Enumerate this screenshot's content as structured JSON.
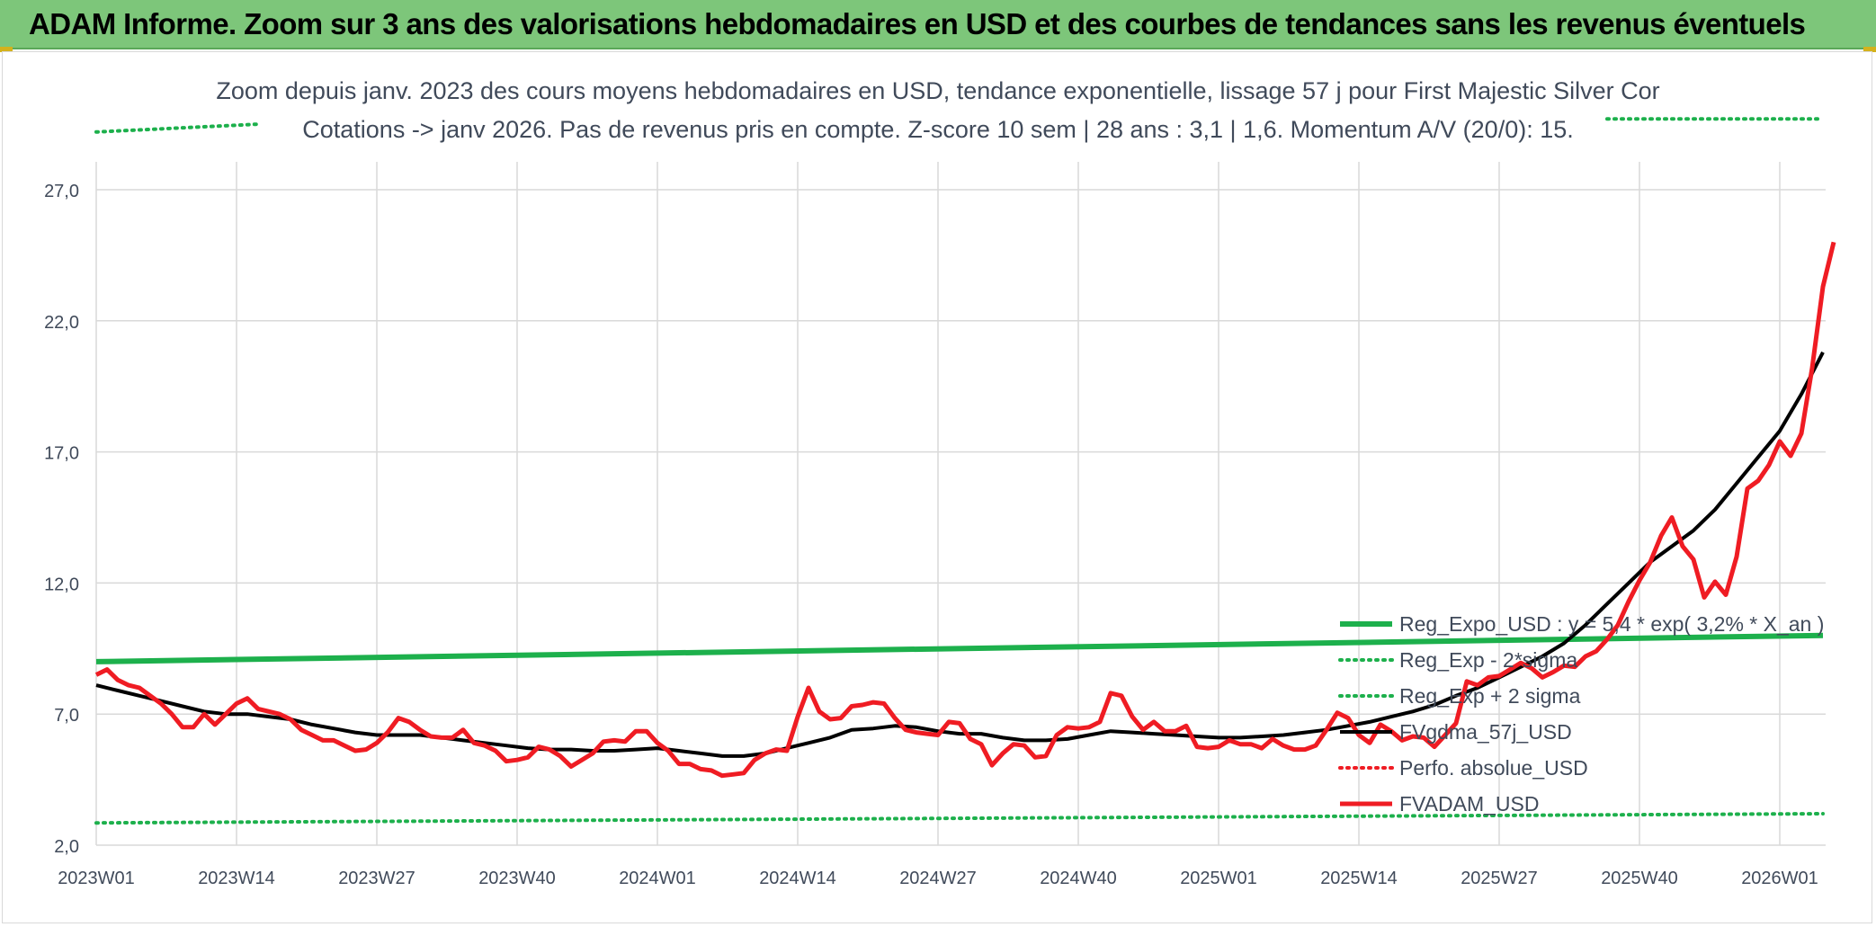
{
  "banner": {
    "title": "ADAM Informe. Zoom sur 3 ans des valorisations hebdomadaires en USD et des courbes de tendances sans les revenus éventuels"
  },
  "colors": {
    "banner_bg": "#7dc67a",
    "green": "#1db04c",
    "red": "#ef1c23",
    "black": "#000000",
    "grid": "#d9d9d9",
    "axis_text": "#404a5a"
  },
  "chart_data": {
    "type": "line",
    "title_lines": [
      "Zoom depuis janv. 2023 des cours moyens hebdomadaires en USD, tendance exponentielle, lissage 57 j pour First Majestic Silver Cor",
      "Cotations -> janv 2026. Pas de revenus pris en compte. Z-score 10 sem | 28 ans : 3,1 | 1,6. Momentum A/V (20/0): 15."
    ],
    "x_start_index": 0,
    "x_ticks": [
      {
        "i": 0,
        "label": "2023W01"
      },
      {
        "i": 13,
        "label": "2023W14"
      },
      {
        "i": 26,
        "label": "2023W27"
      },
      {
        "i": 39,
        "label": "2023W40"
      },
      {
        "i": 52,
        "label": "2024W01"
      },
      {
        "i": 65,
        "label": "2024W14"
      },
      {
        "i": 78,
        "label": "2024W27"
      },
      {
        "i": 91,
        "label": "2024W40"
      },
      {
        "i": 104,
        "label": "2025W01"
      },
      {
        "i": 117,
        "label": "2025W14"
      },
      {
        "i": 130,
        "label": "2025W27"
      },
      {
        "i": 143,
        "label": "2025W40"
      },
      {
        "i": 156,
        "label": "2026W01"
      }
    ],
    "x_range": [
      0,
      160
    ],
    "y_ticks": [
      2,
      7,
      12,
      17,
      22,
      27
    ],
    "y_tick_labels": [
      "2,0",
      "7,0",
      "12,0",
      "17,0",
      "22,0",
      "27,0"
    ],
    "y_range": [
      2,
      29.5
    ],
    "grid": true,
    "legend_position": "bottom-right",
    "series": [
      {
        "name": "Reg_Expo_USD : y = 5,4 * exp( 3,2% * X_an )",
        "style": "solid-thick",
        "color": "#1db04c",
        "points": [
          [
            0,
            9.0
          ],
          [
            160,
            10.0
          ]
        ]
      },
      {
        "name": "Reg_Exp - 2*sigma",
        "style": "dotted",
        "color": "#1db04c",
        "points": [
          [
            0,
            2.85
          ],
          [
            160,
            3.2
          ]
        ]
      },
      {
        "name": "Reg_Exp + 2 sigma",
        "style": "dotted",
        "color": "#1db04c",
        "points": [
          [
            0,
            29.2
          ],
          [
            15,
            29.5
          ]
        ],
        "points2": [
          [
            140,
            29.7
          ],
          [
            160,
            29.7
          ]
        ]
      },
      {
        "name": "FVgdma_57j_USD",
        "style": "solid",
        "color": "#000000",
        "points": [
          [
            0,
            8.1
          ],
          [
            2,
            7.9
          ],
          [
            4,
            7.7
          ],
          [
            6,
            7.5
          ],
          [
            8,
            7.3
          ],
          [
            10,
            7.1
          ],
          [
            12,
            7.0
          ],
          [
            14,
            7.0
          ],
          [
            16,
            6.9
          ],
          [
            18,
            6.8
          ],
          [
            20,
            6.6
          ],
          [
            22,
            6.45
          ],
          [
            24,
            6.3
          ],
          [
            26,
            6.2
          ],
          [
            28,
            6.2
          ],
          [
            30,
            6.2
          ],
          [
            32,
            6.1
          ],
          [
            34,
            6.0
          ],
          [
            36,
            5.9
          ],
          [
            38,
            5.8
          ],
          [
            40,
            5.7
          ],
          [
            42,
            5.65
          ],
          [
            44,
            5.65
          ],
          [
            46,
            5.6
          ],
          [
            48,
            5.6
          ],
          [
            50,
            5.65
          ],
          [
            52,
            5.7
          ],
          [
            54,
            5.6
          ],
          [
            56,
            5.5
          ],
          [
            58,
            5.4
          ],
          [
            60,
            5.4
          ],
          [
            62,
            5.5
          ],
          [
            64,
            5.7
          ],
          [
            66,
            5.9
          ],
          [
            68,
            6.1
          ],
          [
            70,
            6.4
          ],
          [
            72,
            6.45
          ],
          [
            74,
            6.55
          ],
          [
            76,
            6.5
          ],
          [
            78,
            6.35
          ],
          [
            80,
            6.25
          ],
          [
            82,
            6.25
          ],
          [
            84,
            6.1
          ],
          [
            86,
            6.0
          ],
          [
            88,
            6.0
          ],
          [
            90,
            6.05
          ],
          [
            92,
            6.2
          ],
          [
            94,
            6.35
          ],
          [
            96,
            6.3
          ],
          [
            98,
            6.25
          ],
          [
            100,
            6.2
          ],
          [
            102,
            6.15
          ],
          [
            104,
            6.1
          ],
          [
            106,
            6.1
          ],
          [
            108,
            6.15
          ],
          [
            110,
            6.2
          ],
          [
            112,
            6.3
          ],
          [
            114,
            6.4
          ],
          [
            116,
            6.55
          ],
          [
            118,
            6.7
          ],
          [
            120,
            6.9
          ],
          [
            122,
            7.1
          ],
          [
            124,
            7.35
          ],
          [
            126,
            7.7
          ],
          [
            128,
            8.0
          ],
          [
            130,
            8.4
          ],
          [
            132,
            8.8
          ],
          [
            134,
            9.2
          ],
          [
            136,
            9.7
          ],
          [
            138,
            10.4
          ],
          [
            140,
            11.2
          ],
          [
            142,
            12.0
          ],
          [
            144,
            12.8
          ],
          [
            146,
            13.4
          ],
          [
            148,
            14.0
          ],
          [
            150,
            14.8
          ],
          [
            152,
            15.8
          ],
          [
            154,
            16.8
          ],
          [
            156,
            17.8
          ],
          [
            158,
            19.2
          ],
          [
            160,
            20.8
          ]
        ]
      },
      {
        "name": "Perfo. absolue_USD",
        "style": "dotted",
        "color": "#ef1c23",
        "points": []
      },
      {
        "name": "FVADAM_USD",
        "style": "solid-thick",
        "color": "#ef1c23",
        "points": [
          [
            0,
            8.5
          ],
          [
            1,
            8.7
          ],
          [
            2,
            8.3
          ],
          [
            3,
            8.1
          ],
          [
            4,
            8.0
          ],
          [
            5,
            7.7
          ],
          [
            6,
            7.4
          ],
          [
            7,
            7.0
          ],
          [
            8,
            6.5
          ],
          [
            9,
            6.5
          ],
          [
            10,
            7.0
          ],
          [
            11,
            6.6
          ],
          [
            12,
            7.0
          ],
          [
            13,
            7.4
          ],
          [
            14,
            7.6
          ],
          [
            15,
            7.2
          ],
          [
            16,
            7.1
          ],
          [
            17,
            7.0
          ],
          [
            18,
            6.8
          ],
          [
            19,
            6.4
          ],
          [
            20,
            6.2
          ],
          [
            21,
            6.0
          ],
          [
            22,
            6.0
          ],
          [
            23,
            5.8
          ],
          [
            24,
            5.6
          ],
          [
            25,
            5.65
          ],
          [
            26,
            5.9
          ],
          [
            27,
            6.3
          ],
          [
            28,
            6.85
          ],
          [
            29,
            6.7
          ],
          [
            30,
            6.4
          ],
          [
            31,
            6.15
          ],
          [
            32,
            6.1
          ],
          [
            33,
            6.1
          ],
          [
            34,
            6.4
          ],
          [
            35,
            5.9
          ],
          [
            36,
            5.8
          ],
          [
            37,
            5.6
          ],
          [
            38,
            5.2
          ],
          [
            39,
            5.25
          ],
          [
            40,
            5.35
          ],
          [
            41,
            5.75
          ],
          [
            42,
            5.65
          ],
          [
            43,
            5.4
          ],
          [
            44,
            5.0
          ],
          [
            45,
            5.25
          ],
          [
            46,
            5.5
          ],
          [
            47,
            5.95
          ],
          [
            48,
            6.0
          ],
          [
            49,
            5.95
          ],
          [
            50,
            6.35
          ],
          [
            51,
            6.35
          ],
          [
            52,
            5.9
          ],
          [
            53,
            5.6
          ],
          [
            54,
            5.1
          ],
          [
            55,
            5.1
          ],
          [
            56,
            4.9
          ],
          [
            57,
            4.85
          ],
          [
            58,
            4.65
          ],
          [
            59,
            4.7
          ],
          [
            60,
            4.75
          ],
          [
            61,
            5.25
          ],
          [
            62,
            5.5
          ],
          [
            63,
            5.65
          ],
          [
            64,
            5.6
          ],
          [
            65,
            6.9
          ],
          [
            66,
            8.0
          ],
          [
            67,
            7.1
          ],
          [
            68,
            6.8
          ],
          [
            69,
            6.85
          ],
          [
            70,
            7.3
          ],
          [
            71,
            7.35
          ],
          [
            72,
            7.45
          ],
          [
            73,
            7.4
          ],
          [
            74,
            6.85
          ],
          [
            75,
            6.4
          ],
          [
            76,
            6.3
          ],
          [
            77,
            6.25
          ],
          [
            78,
            6.2
          ],
          [
            79,
            6.7
          ],
          [
            80,
            6.65
          ],
          [
            81,
            6.05
          ],
          [
            82,
            5.85
          ],
          [
            83,
            5.05
          ],
          [
            84,
            5.5
          ],
          [
            85,
            5.85
          ],
          [
            86,
            5.8
          ],
          [
            87,
            5.35
          ],
          [
            88,
            5.4
          ],
          [
            89,
            6.2
          ],
          [
            90,
            6.5
          ],
          [
            91,
            6.45
          ],
          [
            92,
            6.5
          ],
          [
            93,
            6.7
          ],
          [
            94,
            7.8
          ],
          [
            95,
            7.7
          ],
          [
            96,
            6.9
          ],
          [
            97,
            6.4
          ],
          [
            98,
            6.7
          ],
          [
            99,
            6.35
          ],
          [
            100,
            6.35
          ],
          [
            101,
            6.55
          ],
          [
            102,
            5.75
          ],
          [
            103,
            5.7
          ],
          [
            104,
            5.75
          ],
          [
            105,
            6.0
          ],
          [
            106,
            5.85
          ],
          [
            107,
            5.85
          ],
          [
            108,
            5.7
          ],
          [
            109,
            6.05
          ],
          [
            110,
            5.8
          ],
          [
            111,
            5.65
          ],
          [
            112,
            5.65
          ],
          [
            113,
            5.8
          ],
          [
            114,
            6.4
          ],
          [
            115,
            7.05
          ],
          [
            116,
            6.85
          ],
          [
            117,
            6.2
          ],
          [
            118,
            5.9
          ],
          [
            119,
            6.6
          ],
          [
            120,
            6.35
          ],
          [
            121,
            6.0
          ],
          [
            122,
            6.15
          ],
          [
            123,
            6.1
          ],
          [
            124,
            5.75
          ],
          [
            125,
            6.2
          ],
          [
            126,
            6.65
          ],
          [
            127,
            8.25
          ],
          [
            128,
            8.1
          ],
          [
            129,
            8.4
          ],
          [
            130,
            8.45
          ],
          [
            131,
            8.7
          ],
          [
            132,
            8.95
          ],
          [
            133,
            8.75
          ],
          [
            134,
            8.4
          ],
          [
            135,
            8.6
          ],
          [
            136,
            8.85
          ],
          [
            137,
            8.8
          ],
          [
            138,
            9.2
          ],
          [
            139,
            9.4
          ],
          [
            140,
            9.85
          ],
          [
            141,
            10.4
          ],
          [
            142,
            11.3
          ],
          [
            143,
            12.1
          ],
          [
            144,
            12.8
          ],
          [
            145,
            13.8
          ],
          [
            146,
            14.5
          ],
          [
            147,
            13.4
          ],
          [
            148,
            12.9
          ],
          [
            149,
            11.45
          ],
          [
            150,
            12.05
          ],
          [
            151,
            11.55
          ],
          [
            152,
            13.0
          ],
          [
            153,
            15.6
          ],
          [
            154,
            15.9
          ],
          [
            155,
            16.5
          ],
          [
            156,
            17.4
          ],
          [
            157,
            16.85
          ],
          [
            158,
            17.7
          ],
          [
            159,
            20.2
          ],
          [
            160,
            23.3
          ],
          [
            161,
            25.0
          ]
        ]
      }
    ]
  }
}
